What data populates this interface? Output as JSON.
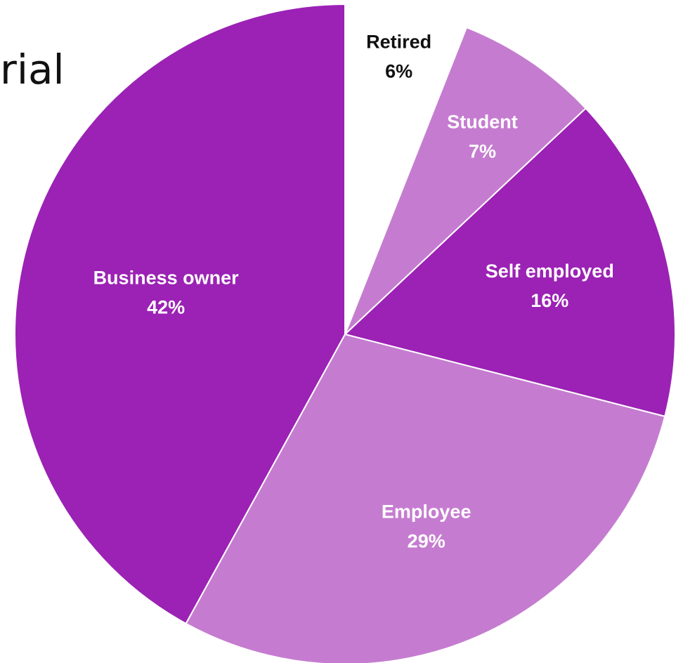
{
  "title_fragment": "rial",
  "colors": {
    "dark_purple": "#9B22B4",
    "light_purple": "#C57CD0",
    "white": "#FFFFFF",
    "label_light": "#FFFFFF",
    "label_dark": "#111111"
  },
  "chart_data": {
    "type": "pie",
    "title": "",
    "slices": [
      {
        "label": "Retired",
        "value": 6,
        "percent_label": "6%",
        "color": "#FFFFFF",
        "label_color": "#111111"
      },
      {
        "label": "Student",
        "value": 7,
        "percent_label": "7%",
        "color": "#C57CD0",
        "label_color": "#FFFFFF"
      },
      {
        "label": "Self employed",
        "value": 16,
        "percent_label": "16%",
        "color": "#9B22B4",
        "label_color": "#FFFFFF"
      },
      {
        "label": "Employee",
        "value": 29,
        "percent_label": "29%",
        "color": "#C57CD0",
        "label_color": "#FFFFFF"
      },
      {
        "label": "Business owner",
        "value": 42,
        "percent_label": "42%",
        "color": "#9B22B4",
        "label_color": "#FFFFFF"
      }
    ],
    "start_angle": "12 o'clock",
    "direction": "clockwise",
    "legend": "none",
    "data_labels": "inside"
  }
}
